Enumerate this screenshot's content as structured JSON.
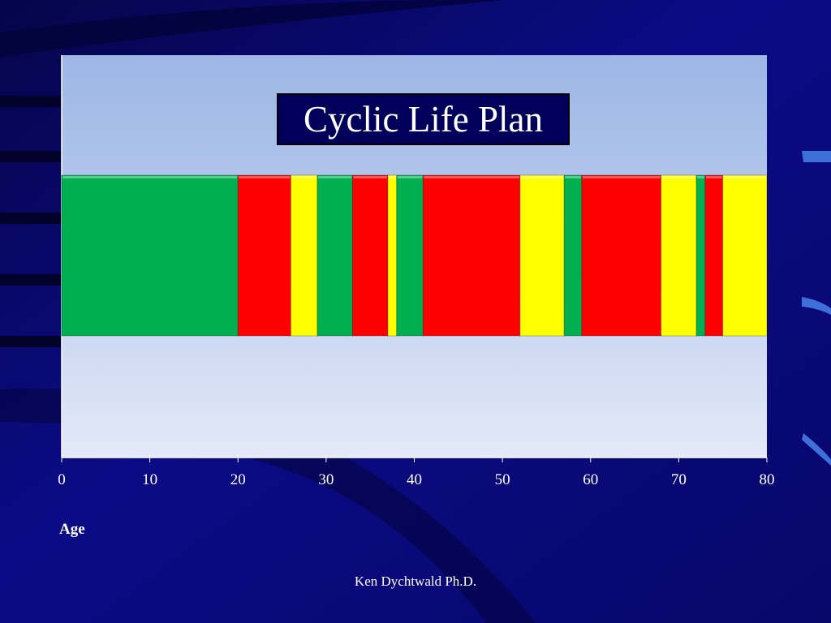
{
  "colors": {
    "green": "#00b050",
    "red": "#ff0000",
    "yellow": "#ffff00",
    "background": "#0a0a7a",
    "plot_top": "#9fb8e6",
    "plot_bottom": "#e2e8f6"
  },
  "chart_data": {
    "type": "bar",
    "orientation": "horizontal-stacked",
    "title": "Cyclic Life Plan",
    "xlabel": "Age",
    "ylabel": "",
    "xlim": [
      0,
      80
    ],
    "xticks": [
      "0",
      "10",
      "20",
      "30",
      "40",
      "50",
      "60",
      "70",
      "80"
    ],
    "grid": false,
    "legend": "none",
    "segments": [
      {
        "start": 0,
        "end": 20,
        "color": "green"
      },
      {
        "start": 20,
        "end": 26,
        "color": "red"
      },
      {
        "start": 26,
        "end": 29,
        "color": "yellow"
      },
      {
        "start": 29,
        "end": 33,
        "color": "green"
      },
      {
        "start": 33,
        "end": 37,
        "color": "red"
      },
      {
        "start": 37,
        "end": 38,
        "color": "yellow"
      },
      {
        "start": 38,
        "end": 41,
        "color": "green"
      },
      {
        "start": 41,
        "end": 52,
        "color": "red"
      },
      {
        "start": 52,
        "end": 57,
        "color": "yellow"
      },
      {
        "start": 57,
        "end": 59,
        "color": "green"
      },
      {
        "start": 59,
        "end": 68,
        "color": "red"
      },
      {
        "start": 68,
        "end": 72,
        "color": "yellow"
      },
      {
        "start": 72,
        "end": 73,
        "color": "green"
      },
      {
        "start": 73,
        "end": 75,
        "color": "red"
      },
      {
        "start": 75,
        "end": 80,
        "color": "yellow"
      }
    ]
  },
  "footer": {
    "text": "Ken Dychtwald Ph.D."
  }
}
